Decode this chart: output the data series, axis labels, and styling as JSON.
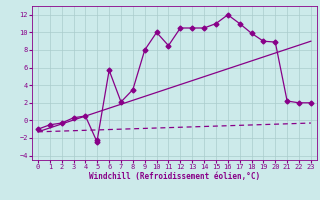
{
  "xlabel": "Windchill (Refroidissement éolien,°C)",
  "bg_color": "#cceaea",
  "line_color": "#880088",
  "xlim": [
    -0.5,
    23.5
  ],
  "ylim": [
    -4.5,
    13.0
  ],
  "xticks": [
    0,
    1,
    2,
    3,
    4,
    5,
    6,
    7,
    8,
    9,
    10,
    11,
    12,
    13,
    14,
    15,
    16,
    17,
    18,
    19,
    20,
    21,
    22,
    23
  ],
  "yticks": [
    -4,
    -2,
    0,
    2,
    4,
    6,
    8,
    10,
    12
  ],
  "line1_x": [
    0,
    1,
    2,
    3,
    4,
    5,
    5,
    6,
    7,
    8,
    9,
    10,
    11,
    12,
    13,
    14,
    15,
    16,
    17,
    18,
    19,
    20,
    21,
    22,
    23
  ],
  "line1_y": [
    -1,
    -0.5,
    -0.3,
    0.3,
    0.5,
    -2.5,
    -2.2,
    5.7,
    2.1,
    3.5,
    8.0,
    10.0,
    8.5,
    10.5,
    10.5,
    10.5,
    11.0,
    12.0,
    11.0,
    9.9,
    9.0,
    8.9,
    2.2,
    2.0,
    2.0
  ],
  "line2_x": [
    0,
    23
  ],
  "line2_y": [
    -1.3,
    -0.3
  ],
  "line3_x": [
    0,
    23
  ],
  "line3_y": [
    -1.3,
    9.0
  ],
  "grid_color": "#aacccc",
  "grid_lw": 0.5,
  "line_lw": 0.9,
  "marker_size": 2.5,
  "tick_fontsize": 5.0,
  "xlabel_fontsize": 5.5
}
